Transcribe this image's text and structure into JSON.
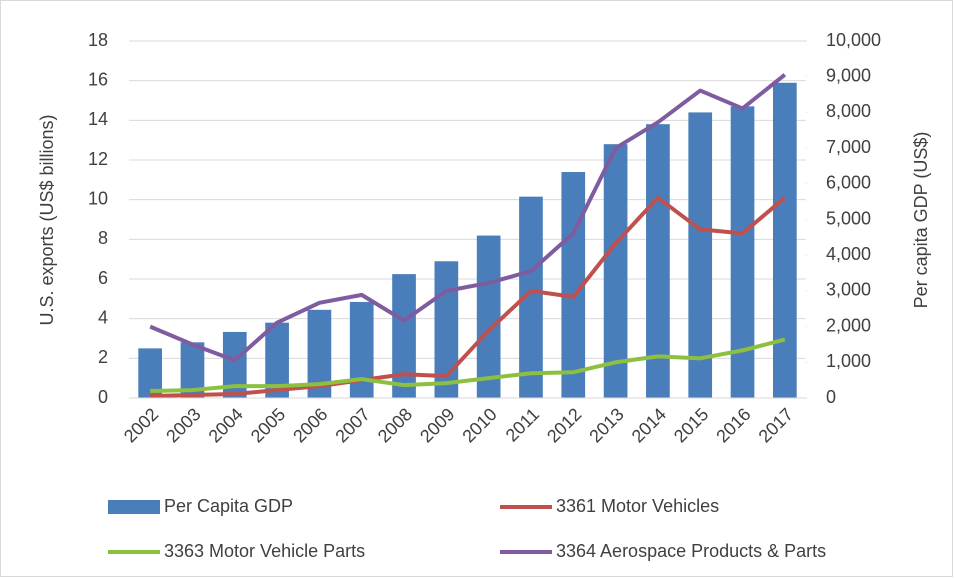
{
  "chart_data": {
    "type": "combo",
    "categories": [
      "2002",
      "2003",
      "2004",
      "2005",
      "2006",
      "2007",
      "2008",
      "2009",
      "2010",
      "2011",
      "2012",
      "2013",
      "2014",
      "2015",
      "2016",
      "2017"
    ],
    "ylabel": "U.S. exports (US$ billions)",
    "y2label": "Per capita GDP (US$)",
    "ylim": [
      0,
      18
    ],
    "yticks": [
      0,
      2,
      4,
      6,
      8,
      10,
      12,
      14,
      16,
      18
    ],
    "y2lim": [
      0,
      10000
    ],
    "y2ticks": [
      0,
      {
        "value": 1000,
        "label": "1,000"
      },
      {
        "value": 2000,
        "label": "2,000"
      },
      {
        "value": 3000,
        "label": "3,000"
      },
      {
        "value": 4000,
        "label": "4,000"
      },
      {
        "value": 5000,
        "label": "5,000"
      },
      {
        "value": 6000,
        "label": "6,000"
      },
      {
        "value": 7000,
        "label": "7,000"
      },
      {
        "value": 8000,
        "label": "8,000"
      },
      {
        "value": 9000,
        "label": "9,000"
      },
      {
        "value": 10000,
        "label": "10,000"
      }
    ],
    "grid": true,
    "legend": "bottom",
    "series": [
      {
        "name": "Per Capita GDP",
        "type": "bar",
        "axis": "y2",
        "color": "#4a7ebb",
        "values": [
          1390,
          1560,
          1850,
          2110,
          2470,
          2690,
          3470,
          3830,
          4550,
          5640,
          6330,
          7110,
          7670,
          8000,
          8170,
          8830
        ]
      },
      {
        "name": "3361 Motor Vehicles",
        "type": "line",
        "color": "#c0504d",
        "values": [
          0.1,
          0.15,
          0.2,
          0.4,
          0.6,
          0.9,
          1.2,
          1.1,
          3.4,
          5.4,
          5.1,
          7.8,
          10.1,
          8.5,
          8.3,
          10.1
        ]
      },
      {
        "name": "3363 Motor Vehicle Parts",
        "type": "line",
        "color": "#8dc03f",
        "values": [
          0.35,
          0.4,
          0.6,
          0.6,
          0.7,
          0.95,
          0.65,
          0.75,
          1.0,
          1.25,
          1.3,
          1.8,
          2.1,
          2.0,
          2.4,
          2.95
        ]
      },
      {
        "name": "3364 Aerospace Products & Parts",
        "type": "line",
        "color": "#7f5ba0",
        "values": [
          3.6,
          2.7,
          1.9,
          3.8,
          4.8,
          5.2,
          3.9,
          5.4,
          5.8,
          6.4,
          8.3,
          12.6,
          13.9,
          15.5,
          14.6,
          16.3
        ]
      }
    ]
  }
}
